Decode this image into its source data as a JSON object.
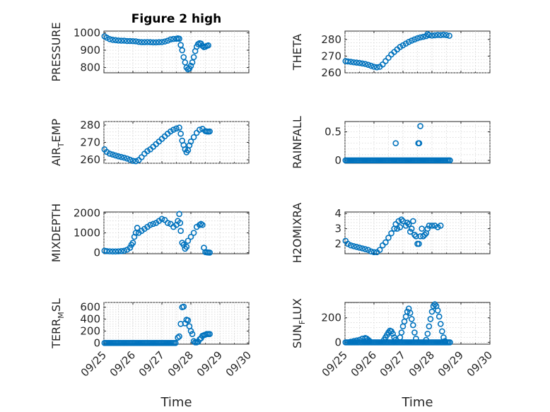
{
  "chart_data": [
    {
      "type": "scatter",
      "title": "Figure 2 high",
      "ylabel": "PRESSURE",
      "xlabel": "",
      "xlim": [
        0,
        5
      ],
      "ylim": [
        770,
        1010
      ],
      "yticks": [
        800,
        900,
        1000
      ],
      "xticks": [
        0,
        1,
        2,
        3,
        4,
        5
      ],
      "xticklabels": [],
      "marker_color": "#0072BD",
      "grid": true,
      "points": [
        [
          0.02,
          980
        ],
        [
          0.1,
          972
        ],
        [
          0.2,
          964
        ],
        [
          0.3,
          960
        ],
        [
          0.4,
          958
        ],
        [
          0.5,
          956
        ],
        [
          0.6,
          955
        ],
        [
          0.7,
          955
        ],
        [
          0.8,
          953
        ],
        [
          0.9,
          953
        ],
        [
          1.0,
          952
        ],
        [
          1.1,
          951
        ],
        [
          1.2,
          948
        ],
        [
          1.3,
          946
        ],
        [
          1.4,
          946
        ],
        [
          1.5,
          947
        ],
        [
          1.6,
          946
        ],
        [
          1.7,
          945
        ],
        [
          1.8,
          945
        ],
        [
          1.9,
          946
        ],
        [
          2.0,
          947
        ],
        [
          2.1,
          950
        ],
        [
          2.2,
          955
        ],
        [
          2.3,
          962
        ],
        [
          2.4,
          965
        ],
        [
          2.5,
          966
        ],
        [
          2.55,
          968
        ],
        [
          2.6,
          966
        ],
        [
          2.65,
          930
        ],
        [
          2.7,
          900
        ],
        [
          2.75,
          860
        ],
        [
          2.8,
          830
        ],
        [
          2.85,
          800
        ],
        [
          2.9,
          790
        ],
        [
          2.95,
          795
        ],
        [
          3.0,
          810
        ],
        [
          3.05,
          830
        ],
        [
          3.1,
          860
        ],
        [
          3.15,
          895
        ],
        [
          3.2,
          920
        ],
        [
          3.25,
          935
        ],
        [
          3.3,
          940
        ],
        [
          3.35,
          938
        ],
        [
          3.4,
          925
        ],
        [
          3.45,
          918
        ],
        [
          3.5,
          920
        ],
        [
          3.55,
          925
        ],
        [
          3.6,
          928
        ]
      ]
    },
    {
      "type": "scatter",
      "ylabel": "THETA",
      "xlabel": "",
      "xlim": [
        0,
        5
      ],
      "ylim": [
        260,
        285
      ],
      "yticks": [
        260,
        270,
        280
      ],
      "xticks": [
        0,
        1,
        2,
        3,
        4,
        5
      ],
      "xticklabels": [],
      "marker_color": "#0072BD",
      "grid": true,
      "points": [
        [
          0.02,
          267
        ],
        [
          0.1,
          266.8
        ],
        [
          0.2,
          266.6
        ],
        [
          0.3,
          266.3
        ],
        [
          0.4,
          266.1
        ],
        [
          0.5,
          265.9
        ],
        [
          0.6,
          265.6
        ],
        [
          0.7,
          265.3
        ],
        [
          0.8,
          264.8
        ],
        [
          0.9,
          264.2
        ],
        [
          1.0,
          263.6
        ],
        [
          1.1,
          263.3
        ],
        [
          1.2,
          263.6
        ],
        [
          1.3,
          265
        ],
        [
          1.4,
          267
        ],
        [
          1.5,
          269
        ],
        [
          1.6,
          271
        ],
        [
          1.7,
          272.5
        ],
        [
          1.8,
          274
        ],
        [
          1.9,
          275.5
        ],
        [
          2.0,
          276.5
        ],
        [
          2.1,
          277.5
        ],
        [
          2.2,
          278.5
        ],
        [
          2.3,
          279.3
        ],
        [
          2.4,
          280
        ],
        [
          2.5,
          280.7
        ],
        [
          2.6,
          281.2
        ],
        [
          2.7,
          281.6
        ],
        [
          2.8,
          282
        ],
        [
          2.85,
          283.2
        ],
        [
          2.9,
          282.6
        ],
        [
          3.0,
          282.3
        ],
        [
          3.1,
          282.5
        ],
        [
          3.2,
          282.7
        ],
        [
          3.3,
          282.6
        ],
        [
          3.4,
          282.8
        ],
        [
          3.5,
          282.6
        ],
        [
          3.6,
          282.2
        ]
      ]
    },
    {
      "type": "scatter",
      "ylabel_main": "AIR",
      "ylabel_sub": "T",
      "ylabel_rest": "EMP",
      "xlabel": "",
      "xlim": [
        0,
        5
      ],
      "ylim": [
        258,
        282
      ],
      "yticks": [
        260,
        270,
        280
      ],
      "xticks": [
        0,
        1,
        2,
        3,
        4,
        5
      ],
      "xticklabels": [],
      "marker_color": "#0072BD",
      "grid": true,
      "points": [
        [
          0.02,
          266
        ],
        [
          0.1,
          264.5
        ],
        [
          0.2,
          263.5
        ],
        [
          0.3,
          263
        ],
        [
          0.4,
          262.5
        ],
        [
          0.5,
          262
        ],
        [
          0.6,
          261.6
        ],
        [
          0.7,
          261.2
        ],
        [
          0.8,
          260.7
        ],
        [
          0.9,
          260
        ],
        [
          1.0,
          259.4
        ],
        [
          1.1,
          259.2
        ],
        [
          1.2,
          259.8
        ],
        [
          1.3,
          261.5
        ],
        [
          1.4,
          263.5
        ],
        [
          1.5,
          265
        ],
        [
          1.6,
          266
        ],
        [
          1.7,
          267.5
        ],
        [
          1.8,
          269
        ],
        [
          1.9,
          270.5
        ],
        [
          2.0,
          272
        ],
        [
          2.1,
          273.5
        ],
        [
          2.2,
          275
        ],
        [
          2.3,
          276.3
        ],
        [
          2.4,
          277.3
        ],
        [
          2.5,
          278
        ],
        [
          2.6,
          278.5
        ],
        [
          2.65,
          275
        ],
        [
          2.7,
          271
        ],
        [
          2.75,
          268.5
        ],
        [
          2.8,
          266
        ],
        [
          2.85,
          264.3
        ],
        [
          2.9,
          265.5
        ],
        [
          2.95,
          268.3
        ],
        [
          3.0,
          270.5
        ],
        [
          3.1,
          273
        ],
        [
          3.2,
          275.5
        ],
        [
          3.3,
          277.3
        ],
        [
          3.4,
          277.8
        ],
        [
          3.5,
          276.5
        ],
        [
          3.55,
          276.3
        ],
        [
          3.6,
          276.2
        ],
        [
          3.65,
          276.3
        ]
      ]
    },
    {
      "type": "scatter",
      "ylabel": "RAINFALL",
      "xlabel": "",
      "xlim": [
        0,
        5
      ],
      "ylim": [
        -0.05,
        0.68
      ],
      "yticks": [
        0,
        0.5
      ],
      "yticklabels": [
        "0",
        "0.5"
      ],
      "xticks": [
        0,
        1,
        2,
        3,
        4,
        5
      ],
      "xticklabels": [],
      "marker_color": "#0072BD",
      "grid": true,
      "zero_range": [
        0.02,
        3.65
      ],
      "points": [
        [
          1.75,
          0.3
        ],
        [
          2.53,
          0.3
        ],
        [
          2.56,
          0.3
        ],
        [
          2.6,
          0.6
        ]
      ]
    },
    {
      "type": "scatter",
      "ylabel": "MIXDEPTH",
      "xlabel": "",
      "xlim": [
        0,
        5
      ],
      "ylim": [
        -50,
        2050
      ],
      "yticks": [
        0,
        1000,
        2000
      ],
      "xticks": [
        0,
        1,
        2,
        3,
        4,
        5
      ],
      "xticklabels": [],
      "marker_color": "#0072BD",
      "grid": true,
      "points": [
        [
          0.02,
          100
        ],
        [
          0.1,
          80
        ],
        [
          0.2,
          70
        ],
        [
          0.3,
          65
        ],
        [
          0.4,
          65
        ],
        [
          0.5,
          70
        ],
        [
          0.6,
          80
        ],
        [
          0.7,
          100
        ],
        [
          0.8,
          150
        ],
        [
          0.9,
          250
        ],
        [
          0.95,
          400
        ],
        [
          1.0,
          500
        ],
        [
          1.05,
          800
        ],
        [
          1.1,
          1000
        ],
        [
          1.15,
          1250
        ],
        [
          1.2,
          1000
        ],
        [
          1.3,
          1100
        ],
        [
          1.4,
          1200
        ],
        [
          1.5,
          1300
        ],
        [
          1.6,
          1400
        ],
        [
          1.7,
          1450
        ],
        [
          1.8,
          1500
        ],
        [
          1.9,
          1600
        ],
        [
          2.0,
          1700
        ],
        [
          2.1,
          1650
        ],
        [
          2.2,
          1500
        ],
        [
          2.3,
          1450
        ],
        [
          2.4,
          1300
        ],
        [
          2.5,
          1400
        ],
        [
          2.55,
          1600
        ],
        [
          2.6,
          1950
        ],
        [
          2.63,
          1500
        ],
        [
          2.65,
          1100
        ],
        [
          2.7,
          500
        ],
        [
          2.75,
          400
        ],
        [
          2.8,
          200
        ],
        [
          2.85,
          300
        ],
        [
          2.9,
          600
        ],
        [
          3.0,
          800
        ],
        [
          3.1,
          1000
        ],
        [
          3.2,
          1300
        ],
        [
          3.3,
          1400
        ],
        [
          3.35,
          1450
        ],
        [
          3.4,
          1400
        ],
        [
          3.45,
          250
        ],
        [
          3.5,
          30
        ],
        [
          3.55,
          20
        ],
        [
          3.6,
          10
        ],
        [
          3.65,
          5
        ]
      ]
    },
    {
      "type": "scatter",
      "ylabel": "H2OMIXRA",
      "xlabel": "",
      "xlim": [
        0,
        5
      ],
      "ylim": [
        1.35,
        4.1
      ],
      "yticks": [
        2,
        3,
        4
      ],
      "xticks": [
        0,
        1,
        2,
        3,
        4,
        5
      ],
      "xticklabels": [],
      "marker_color": "#0072BD",
      "grid": true,
      "points": [
        [
          0.02,
          2.2
        ],
        [
          0.1,
          2.0
        ],
        [
          0.2,
          1.9
        ],
        [
          0.3,
          1.85
        ],
        [
          0.4,
          1.8
        ],
        [
          0.5,
          1.75
        ],
        [
          0.6,
          1.7
        ],
        [
          0.7,
          1.65
        ],
        [
          0.8,
          1.6
        ],
        [
          0.9,
          1.5
        ],
        [
          1.0,
          1.45
        ],
        [
          1.1,
          1.45
        ],
        [
          1.2,
          1.6
        ],
        [
          1.3,
          1.9
        ],
        [
          1.4,
          2.1
        ],
        [
          1.5,
          2.4
        ],
        [
          1.6,
          2.7
        ],
        [
          1.7,
          3.0
        ],
        [
          1.75,
          3.3
        ],
        [
          1.8,
          3.0
        ],
        [
          1.85,
          3.5
        ],
        [
          1.9,
          3.1
        ],
        [
          1.95,
          3.6
        ],
        [
          2.0,
          3.5
        ],
        [
          2.1,
          3.2
        ],
        [
          2.15,
          3.4
        ],
        [
          2.2,
          3.3
        ],
        [
          2.25,
          2.8
        ],
        [
          2.3,
          3.0
        ],
        [
          2.35,
          3.5
        ],
        [
          2.4,
          2.6
        ],
        [
          2.45,
          2.5
        ],
        [
          2.5,
          2.0
        ],
        [
          2.55,
          2.0
        ],
        [
          2.6,
          2.5
        ],
        [
          2.65,
          3.0
        ],
        [
          2.7,
          2.5
        ],
        [
          2.75,
          2.6
        ],
        [
          2.8,
          2.7
        ],
        [
          2.85,
          3.0
        ],
        [
          2.9,
          3.2
        ],
        [
          3.0,
          3.2
        ],
        [
          3.1,
          3.2
        ],
        [
          3.2,
          3.1
        ],
        [
          3.3,
          3.2
        ]
      ]
    },
    {
      "type": "scatter",
      "ylabel_main": "TERR",
      "ylabel_sub": "M",
      "ylabel_rest": "SL",
      "xlabel": "Time",
      "xlim": [
        0,
        5
      ],
      "ylim": [
        -20,
        680
      ],
      "yticks": [
        0,
        200,
        400,
        600
      ],
      "xticks": [
        0,
        1,
        2,
        3,
        4,
        5
      ],
      "xticklabels": [
        "09/25",
        "09/26",
        "09/27",
        "09/28",
        "09/29",
        "09/30"
      ],
      "marker_color": "#0072BD",
      "grid": true,
      "zero_range": [
        0.02,
        2.5
      ],
      "points": [
        [
          2.55,
          90
        ],
        [
          2.6,
          110
        ],
        [
          2.65,
          320
        ],
        [
          2.7,
          600
        ],
        [
          2.75,
          610
        ],
        [
          2.8,
          330
        ],
        [
          2.85,
          390
        ],
        [
          2.9,
          380
        ],
        [
          2.95,
          280
        ],
        [
          3.0,
          200
        ],
        [
          3.05,
          150
        ],
        [
          3.1,
          30
        ],
        [
          3.15,
          10
        ],
        [
          3.2,
          10
        ],
        [
          3.25,
          20
        ],
        [
          3.3,
          60
        ],
        [
          3.35,
          80
        ],
        [
          3.4,
          120
        ],
        [
          3.45,
          130
        ],
        [
          3.5,
          140
        ],
        [
          3.55,
          150
        ],
        [
          3.6,
          150
        ],
        [
          3.65,
          150
        ]
      ]
    },
    {
      "type": "scatter",
      "ylabel_main": "SUN",
      "ylabel_sub": "F",
      "ylabel_rest": "LUX",
      "xlabel": "Time",
      "xlim": [
        0,
        5
      ],
      "ylim": [
        -15,
        325
      ],
      "yticks": [
        0,
        200
      ],
      "xticks": [
        0,
        1,
        2,
        3,
        4,
        5
      ],
      "xticklabels": [
        "09/25",
        "09/26",
        "09/27",
        "09/28",
        "09/29",
        "09/30"
      ],
      "marker_color": "#0072BD",
      "grid": true,
      "zero_range": [
        0.02,
        3.65
      ],
      "points": [
        [
          0.2,
          5
        ],
        [
          0.3,
          10
        ],
        [
          0.4,
          15
        ],
        [
          0.5,
          20
        ],
        [
          0.6,
          30
        ],
        [
          0.7,
          35
        ],
        [
          0.75,
          30
        ],
        [
          0.8,
          20
        ],
        [
          0.85,
          10
        ],
        [
          1.35,
          20
        ],
        [
          1.4,
          40
        ],
        [
          1.45,
          60
        ],
        [
          1.5,
          80
        ],
        [
          1.55,
          95
        ],
        [
          1.6,
          90
        ],
        [
          1.65,
          70
        ],
        [
          1.7,
          40
        ],
        [
          1.75,
          20
        ],
        [
          1.9,
          40
        ],
        [
          1.95,
          80
        ],
        [
          2.0,
          130
        ],
        [
          2.05,
          170
        ],
        [
          2.1,
          210
        ],
        [
          2.15,
          250
        ],
        [
          2.2,
          275
        ],
        [
          2.25,
          240
        ],
        [
          2.3,
          190
        ],
        [
          2.35,
          140
        ],
        [
          2.4,
          80
        ],
        [
          2.45,
          30
        ],
        [
          2.8,
          20
        ],
        [
          2.85,
          70
        ],
        [
          2.9,
          130
        ],
        [
          2.95,
          190
        ],
        [
          3.0,
          250
        ],
        [
          3.05,
          295
        ],
        [
          3.1,
          310
        ],
        [
          3.15,
          295
        ],
        [
          3.2,
          260
        ],
        [
          3.25,
          210
        ],
        [
          3.3,
          150
        ],
        [
          3.35,
          90
        ],
        [
          3.4,
          40
        ],
        [
          3.45,
          10
        ]
      ]
    }
  ]
}
